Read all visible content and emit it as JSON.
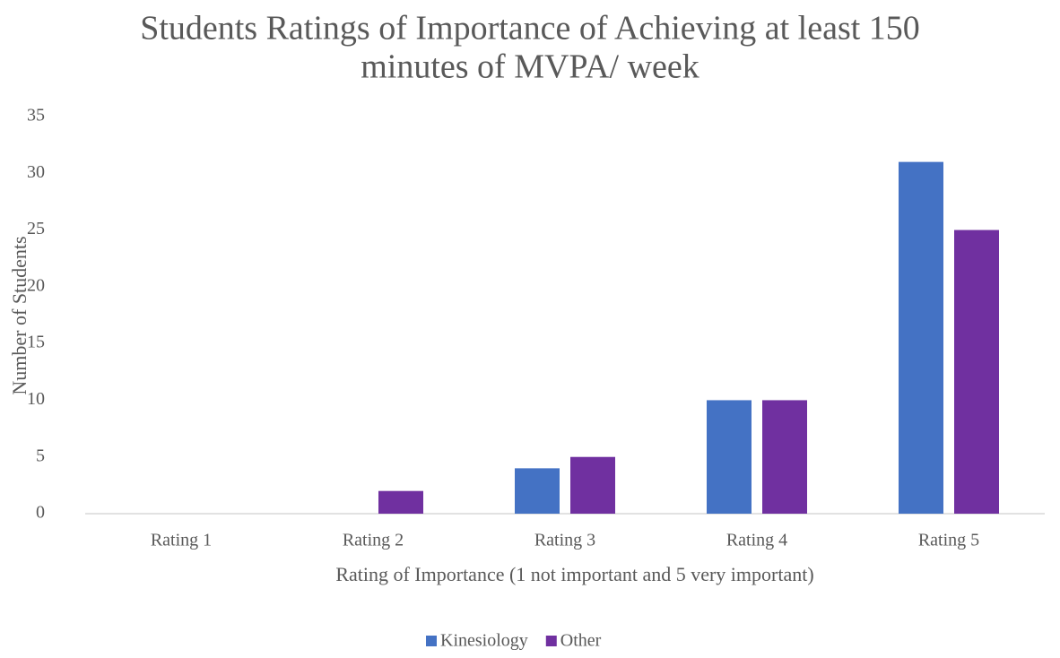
{
  "chart_data": {
    "type": "bar",
    "title": [
      "Students Ratings of Importance of Achieving at least 150",
      "minutes of MVPA/ week"
    ],
    "x_label": "Rating of Importance (1 not important and 5 very important)",
    "y_label": "Number of Students",
    "categories": [
      "Rating 1",
      "Rating 2",
      "Rating 3",
      "Rating 4",
      "Rating 5"
    ],
    "series": [
      {
        "name": "Kinesiology",
        "color": "#4472c4",
        "values": [
          0,
          0,
          4,
          10,
          31
        ]
      },
      {
        "name": "Other",
        "color": "#7030a0",
        "values": [
          0,
          2,
          5,
          10,
          25
        ]
      }
    ],
    "ylim": [
      0,
      35
    ],
    "yticks": [
      0,
      5,
      10,
      15,
      20,
      25,
      30,
      35
    ],
    "grid": false,
    "legend": "bottom"
  }
}
